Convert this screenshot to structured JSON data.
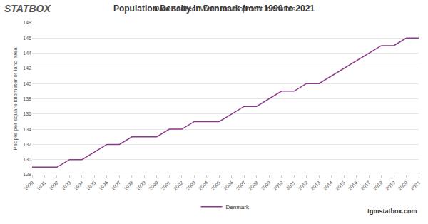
{
  "chart_data": {
    "type": "line",
    "title": "Population Density in Denmark from 1990 to 2021",
    "subtitle": "Data Source: World Development Indicators.",
    "y_label": "People per square kilometer of land area",
    "annotations": [
      "STATBOX",
      "tgmstatbox.com"
    ],
    "x": [
      1990,
      1991,
      1992,
      1993,
      1994,
      1995,
      1996,
      1997,
      1998,
      1999,
      2000,
      2001,
      2002,
      2003,
      2004,
      2005,
      2006,
      2007,
      2008,
      2009,
      2010,
      2011,
      2012,
      2013,
      2014,
      2015,
      2016,
      2017,
      2018,
      2019,
      2020,
      2021
    ],
    "series": [
      {
        "name": "Denmark",
        "color": "#8b3a8b",
        "values": [
          129,
          129,
          129,
          130,
          130,
          131,
          132,
          132,
          133,
          133,
          133,
          134,
          134,
          135,
          135,
          135,
          136,
          137,
          137,
          138,
          139,
          139,
          140,
          140,
          141,
          142,
          143,
          144,
          145,
          145,
          146,
          146
        ]
      }
    ],
    "xlim": [
      1990,
      2021
    ],
    "xticks": [
      1990,
      1991,
      1992,
      1993,
      1994,
      1995,
      1996,
      1997,
      1998,
      1999,
      2000,
      2001,
      2002,
      2003,
      2004,
      2005,
      2006,
      2007,
      2008,
      2009,
      2010,
      2011,
      2012,
      2013,
      2014,
      2015,
      2016,
      2017,
      2018,
      2019,
      2020,
      2021
    ],
    "ylim": [
      128,
      148
    ],
    "yticks": [
      128,
      130,
      132,
      134,
      136,
      138,
      140,
      142,
      144,
      146,
      148
    ],
    "grid": true,
    "legend": "bottom"
  }
}
